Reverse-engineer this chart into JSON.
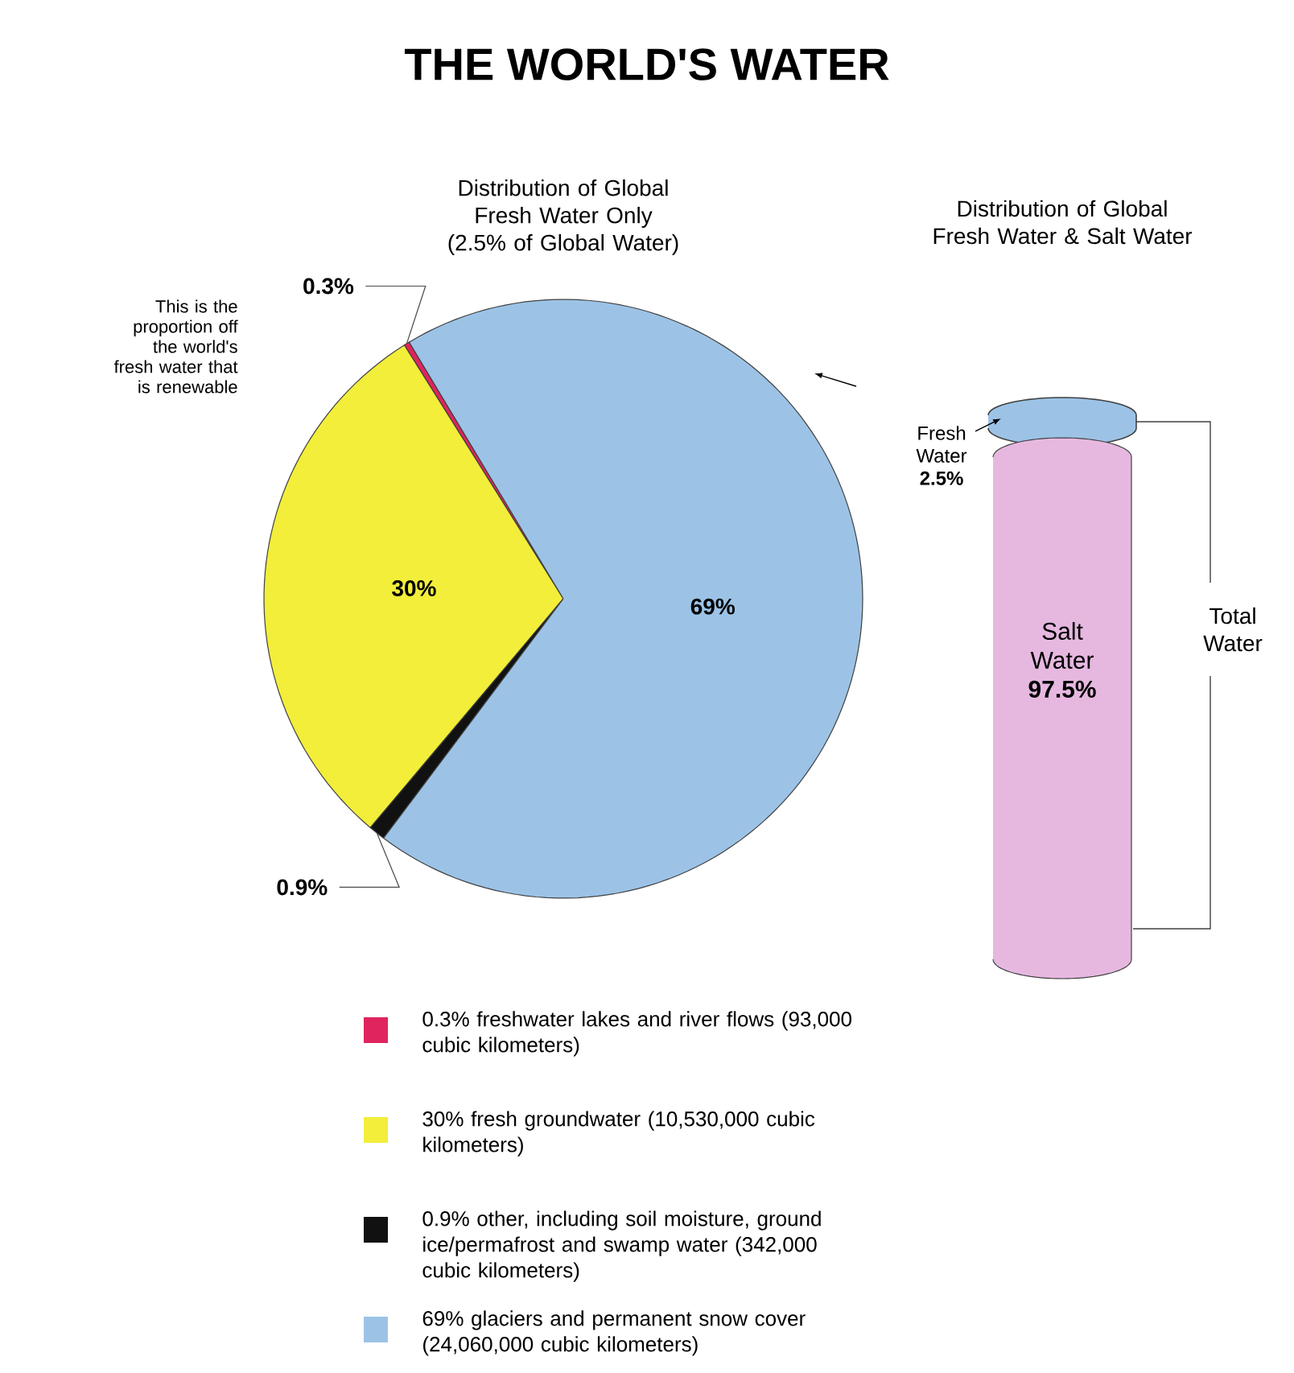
{
  "chart_data": [
    {
      "type": "pie",
      "title": "THE WORLD'S WATER",
      "subtitle": "Distribution of Global Fresh Water Only (2.5% of Global Water)",
      "categories": [
        "0.3% freshwater lakes and river flows (93,000 cubic kilometers)",
        "30% fresh groundwater (10,530,000 cubic kilometers)",
        "0.9% other, including soil moisture, ground ice/permafrost and swamp water (342,000 cubic kilometers)",
        "69% glaciers and permanent snow cover (24,060,000 cubic kilometers)"
      ],
      "values": [
        0.3,
        30,
        0.9,
        69
      ],
      "value_labels": [
        "0.3%",
        "30%",
        "0.9%",
        "69%"
      ],
      "colors": [
        "#e0245e",
        "#f2ee3a",
        "#111111",
        "#9cc3e6"
      ],
      "annotations": [
        "This is the proportion off the world's fresh water that is renewable"
      ],
      "legend": "bottom"
    },
    {
      "type": "other",
      "title": "Distribution of Global Fresh Water & Salt Water",
      "categories": [
        "Fresh Water",
        "Salt Water"
      ],
      "values": [
        2.5,
        97.5
      ],
      "value_labels": [
        "2.5%",
        "97.5%"
      ],
      "colors": [
        "#9cc3e6",
        "#e6b8e0"
      ],
      "annotations": [
        "Total Water"
      ]
    }
  ]
}
